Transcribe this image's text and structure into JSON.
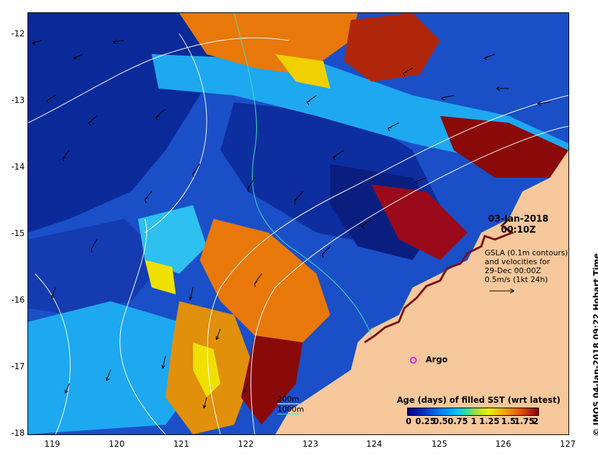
{
  "map": {
    "title_date": "03-Jan-2018",
    "title_time": "00:10Z",
    "gsla_line1": "GSLA (0.1m contours)",
    "gsla_line2": "and velocities for",
    "gsla_line3": "29-Dec 00:00Z",
    "velocity_scale": "0.5m/s (1kt 24h)",
    "argo_label": "Argo",
    "depth_200": "200m",
    "depth_1000": "1000m",
    "colorbar_title": "Age (days) of filled SST (wrt latest)",
    "colorbar_ticks": [
      "0",
      "0.25",
      "0.5",
      "0.75",
      "1",
      "1.25",
      "1.5",
      "1.75",
      "2"
    ],
    "credit": "© IMOS 04-Jan-2018 09:22 Hobart Time",
    "lon_ticks": [
      "119",
      "120",
      "121",
      "122",
      "123",
      "124",
      "125",
      "126",
      "127"
    ],
    "lat_ticks": [
      "-12",
      "-13",
      "-14",
      "-15",
      "-16",
      "-17",
      "-18"
    ],
    "colors": {
      "land": "#f6c89b",
      "deep_blue": "#0a2a9a",
      "mid_blue": "#1a5ad8",
      "light_blue": "#1ea8f0",
      "orange": "#e8780a",
      "dark_red": "#8a0a0a",
      "yellow": "#f0e000",
      "argo": "#e020e0",
      "contour": "#ffffff",
      "isobath_1000": "#40e0c0"
    }
  }
}
